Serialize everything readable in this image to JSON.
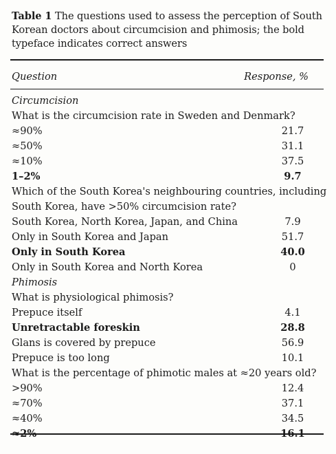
{
  "caption": {
    "label": "Table 1",
    "text": "The questions used to assess the perception of South Korean doctors about circumcision and phimosis; the bold typeface indicates correct answers"
  },
  "header": {
    "question": "Question",
    "response": "Response, %"
  },
  "rows": [
    {
      "text": "Circumcision",
      "value": "",
      "style": "section"
    },
    {
      "text": "What is the circumcision rate in Sweden and Denmark?",
      "value": "",
      "style": "question"
    },
    {
      "text": "≈90%",
      "value": "21.7",
      "style": "answer"
    },
    {
      "text": "≈50%",
      "value": "31.1",
      "style": "answer"
    },
    {
      "text": "≈10%",
      "value": "37.5",
      "style": "answer"
    },
    {
      "text": "1–2%",
      "value": "9.7",
      "style": "bold"
    },
    {
      "text": "Which of the South Korea's neighbouring countries, including",
      "value": "",
      "style": "question"
    },
    {
      "text": "South Korea, have >50% circumcision rate?",
      "value": "",
      "style": "question"
    },
    {
      "text": "South Korea, North Korea, Japan, and China",
      "value": "7.9",
      "style": "answer"
    },
    {
      "text": "Only in South Korea and Japan",
      "value": "51.7",
      "style": "answer"
    },
    {
      "text": "Only in South Korea",
      "value": "40.0",
      "style": "bold"
    },
    {
      "text": "Only in South Korea and North Korea",
      "value": "0",
      "style": "answer"
    },
    {
      "text": "Phimosis",
      "value": "",
      "style": "section"
    },
    {
      "text": "What is physiological phimosis?",
      "value": "",
      "style": "question"
    },
    {
      "text": "Prepuce itself",
      "value": "4.1",
      "style": "answer"
    },
    {
      "text": "Unretractable foreskin",
      "value": "28.8",
      "style": "bold"
    },
    {
      "text": "Glans is covered by prepuce",
      "value": "56.9",
      "style": "answer"
    },
    {
      "text": "Prepuce is too long",
      "value": "10.1",
      "style": "answer"
    },
    {
      "text": "What is the percentage of phimotic males at ≈20 years old?",
      "value": "",
      "style": "question"
    },
    {
      "text": ">90%",
      "value": "12.4",
      "style": "answer"
    },
    {
      "text": "≈70%",
      "value": "37.1",
      "style": "answer"
    },
    {
      "text": "≈40%",
      "value": "34.5",
      "style": "answer"
    },
    {
      "text": "≈2%",
      "value": "16.1",
      "style": "bold"
    }
  ]
}
